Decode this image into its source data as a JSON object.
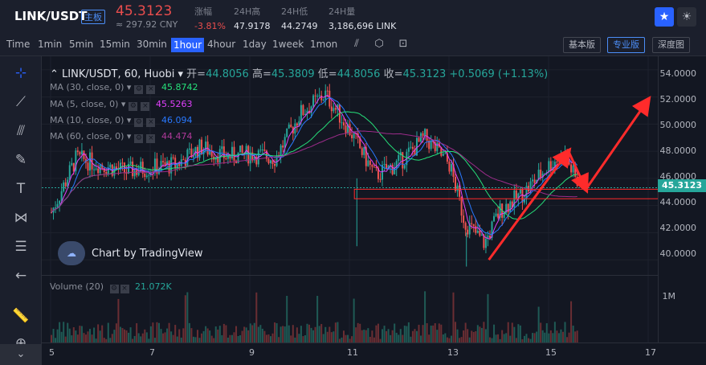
{
  "header": {
    "pair": "LINK/USDT",
    "badge": "主板",
    "last_price": "45.3123",
    "cny_price": "≈ 297.92 CNY",
    "stats": [
      {
        "label": "涨幅",
        "value": "-3.81%"
      },
      {
        "label": "24H高",
        "value": "47.9178"
      },
      {
        "label": "24H低",
        "value": "44.2749"
      },
      {
        "label": "24H量",
        "value": "3,186,696 LINK"
      }
    ],
    "star_icon": "star-icon",
    "theme_icon": "sun-icon"
  },
  "toolbar": {
    "timeframes": [
      "Time",
      "1min",
      "5min",
      "15min",
      "30min",
      "1hour",
      "4hour",
      "1day",
      "1week",
      "1mon"
    ],
    "active": "1hour",
    "views": [
      "基本版",
      "专业版",
      "深度图"
    ],
    "active_view": "专业版"
  },
  "legend": {
    "title": "LINK/USDT, 60, Huobi",
    "open_label": "开=",
    "open": "44.8056",
    "high_label": "高=",
    "high": "45.3809",
    "low_label": "低=",
    "low": "44.8056",
    "close_label": "收=",
    "close": "45.3123",
    "change": "+0.5069 (+1.13%)",
    "mas": [
      {
        "label": "MA (30, close, 0)",
        "value": "45.8742",
        "color": "#26e07a"
      },
      {
        "label": "MA (5, close, 0)",
        "value": "45.5263",
        "color": "#e040fb"
      },
      {
        "label": "MA (10, close, 0)",
        "value": "46.094",
        "color": "#2979ff"
      },
      {
        "label": "MA (60, close, 0)",
        "value": "44.474",
        "color": "#b03a9a"
      }
    ],
    "volume_label": "Volume (20)",
    "volume_value": "21.072K"
  },
  "tv_logo": "Chart by TradingView",
  "price_axis": [
    "54.0000",
    "52.0000",
    "50.0000",
    "48.0000",
    "46.0000",
    "44.0000",
    "42.0000",
    "40.0000"
  ],
  "current_price_tag": "45.3123",
  "volume_axis": [
    "1M"
  ],
  "date_axis": [
    "5",
    "7",
    "9",
    "11",
    "13",
    "15",
    "17"
  ],
  "colors": {
    "up": "#26a69a",
    "down": "#ef5350",
    "accent": "#2962ff",
    "annotation": "#ff2b2b"
  },
  "chart_data": {
    "type": "candlestick",
    "ylim": [
      39,
      55
    ],
    "key_levels": {
      "last": 45.3123,
      "zone_low": 44.5,
      "zone_high": 45.2
    },
    "approx_close_path": [
      {
        "x": "5",
        "y": 43.5
      },
      {
        "x": "5.5",
        "y": 47.5
      },
      {
        "x": "6",
        "y": 47.0
      },
      {
        "x": "6.5",
        "y": 46.5
      },
      {
        "x": "7",
        "y": 46.8
      },
      {
        "x": "7.5",
        "y": 47.0
      },
      {
        "x": "8",
        "y": 48.3
      },
      {
        "x": "8.5",
        "y": 47.6
      },
      {
        "x": "9",
        "y": 47.8
      },
      {
        "x": "9.5",
        "y": 47.5
      },
      {
        "x": "10",
        "y": 50.8
      },
      {
        "x": "10.5",
        "y": 52.2
      },
      {
        "x": "11",
        "y": 49.5
      },
      {
        "x": "11.5",
        "y": 46.2
      },
      {
        "x": "12",
        "y": 47.2
      },
      {
        "x": "12.5",
        "y": 49.0
      },
      {
        "x": "13",
        "y": 47.0
      },
      {
        "x": "13.3",
        "y": 42.8
      },
      {
        "x": "13.7",
        "y": 41.2
      },
      {
        "x": "14",
        "y": 43.6
      },
      {
        "x": "14.5",
        "y": 45.0
      },
      {
        "x": "15",
        "y": 47.0
      },
      {
        "x": "15.3",
        "y": 47.8
      },
      {
        "x": "15.6",
        "y": 45.3
      }
    ]
  }
}
